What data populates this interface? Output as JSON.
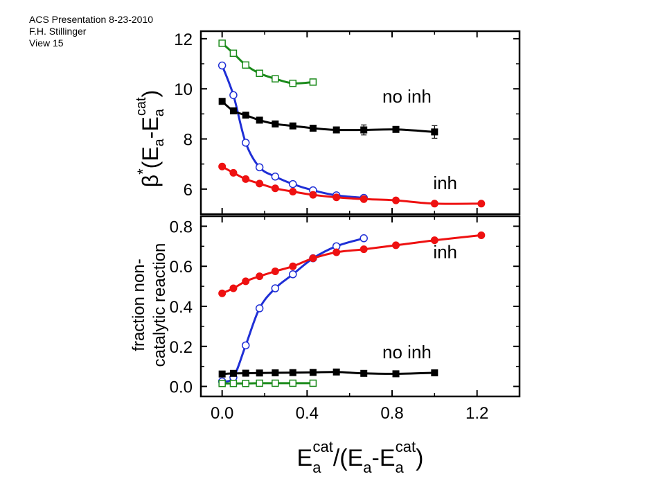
{
  "header": {
    "line1": "ACS Presentation 8-23-2010",
    "line2": "F.H. Stillinger",
    "line3": "View 15"
  },
  "colors": {
    "green": "#1a8a1a",
    "blue": "#1f2fd6",
    "black": "#000000",
    "red": "#ee1111"
  },
  "chart_data": [
    {
      "type": "line",
      "panel": "top",
      "ylabel": {
        "beta": "β",
        "star": "*",
        "open": "(E",
        "sub1": "a",
        "mid": "-E",
        "sub2": "a",
        "sup2": "cat",
        "close": ")"
      },
      "xlim": [
        -0.1,
        1.4
      ],
      "ylim": [
        5.0,
        12.3
      ],
      "yticks": [
        {
          "value": 6,
          "label": "6"
        },
        {
          "value": 8,
          "label": "8"
        },
        {
          "value": 10,
          "label": "10"
        },
        {
          "value": 12,
          "label": "12"
        }
      ],
      "annotations": [
        {
          "text": "no inh",
          "x": 0.87,
          "y": 9.45
        },
        {
          "text": "inh",
          "x": 1.05,
          "y": 6.0
        }
      ],
      "series": [
        {
          "id": "green-sq",
          "color": "#1a8a1a",
          "marker": "open-square",
          "x": [
            0.0,
            0.053,
            0.111,
            0.176,
            0.25,
            0.333,
            0.428
          ],
          "y": [
            11.82,
            11.42,
            10.95,
            10.62,
            10.4,
            10.22,
            10.27
          ]
        },
        {
          "id": "blue-circ",
          "color": "#1f2fd6",
          "marker": "open-circle",
          "x": [
            0.0,
            0.053,
            0.111,
            0.176,
            0.25,
            0.333,
            0.428,
            0.538,
            0.667
          ],
          "y": [
            10.93,
            9.75,
            7.85,
            6.87,
            6.5,
            6.2,
            5.95,
            5.75,
            5.65
          ]
        },
        {
          "id": "black-sq",
          "color": "#000000",
          "marker": "filled-square",
          "x": [
            0.0,
            0.053,
            0.111,
            0.176,
            0.25,
            0.333,
            0.428,
            0.538,
            0.667,
            0.818,
            1.0
          ],
          "y": [
            9.5,
            9.12,
            8.95,
            8.75,
            8.6,
            8.52,
            8.43,
            8.36,
            8.36,
            8.38,
            8.28
          ],
          "yerr": [
            0,
            0,
            0,
            0,
            0,
            0,
            0,
            0,
            0.2,
            0,
            0.25
          ]
        },
        {
          "id": "red-circ",
          "color": "#ee1111",
          "marker": "filled-circle",
          "x": [
            0.0,
            0.053,
            0.111,
            0.176,
            0.25,
            0.333,
            0.428,
            0.538,
            0.667,
            0.818,
            1.0,
            1.22
          ],
          "y": [
            6.9,
            6.65,
            6.4,
            6.22,
            6.03,
            5.9,
            5.77,
            5.67,
            5.6,
            5.55,
            5.42,
            5.42
          ]
        }
      ]
    },
    {
      "type": "line",
      "panel": "bottom",
      "ylabel": {
        "line1": "fraction non-",
        "line2": "catalytic reaction"
      },
      "xlabel": {
        "E1": "E",
        "sub1": "a",
        "sup1": "cat",
        "rest": "/(E",
        "sub2": "a",
        "mid": "-E",
        "sub3": "a",
        "sup3": "cat",
        "close": ")"
      },
      "xlim": [
        -0.1,
        1.4
      ],
      "ylim": [
        -0.05,
        0.85
      ],
      "xticks": [
        {
          "value": 0.0,
          "label": "0.0"
        },
        {
          "value": 0.4,
          "label": "0.4"
        },
        {
          "value": 0.8,
          "label": "0.8"
        },
        {
          "value": 1.2,
          "label": "1.2"
        }
      ],
      "yticks": [
        {
          "value": 0.0,
          "label": "0.0"
        },
        {
          "value": 0.2,
          "label": "0.2"
        },
        {
          "value": 0.4,
          "label": "0.4"
        },
        {
          "value": 0.6,
          "label": "0.6"
        },
        {
          "value": 0.8,
          "label": "0.8"
        }
      ],
      "annotations": [
        {
          "text": "inh",
          "x": 1.05,
          "y": 0.64
        },
        {
          "text": "no inh",
          "x": 0.87,
          "y": 0.14
        }
      ],
      "series": [
        {
          "id": "blue-circ",
          "color": "#1f2fd6",
          "marker": "open-circle",
          "x": [
            0.0,
            0.053,
            0.111,
            0.176,
            0.25,
            0.333,
            0.428,
            0.538,
            0.667
          ],
          "y": [
            0.025,
            0.045,
            0.205,
            0.39,
            0.49,
            0.56,
            0.64,
            0.7,
            0.74
          ]
        },
        {
          "id": "red-circ",
          "color": "#ee1111",
          "marker": "filled-circle",
          "x": [
            0.0,
            0.053,
            0.111,
            0.176,
            0.25,
            0.333,
            0.428,
            0.538,
            0.667,
            0.818,
            1.0,
            1.22
          ],
          "y": [
            0.465,
            0.49,
            0.525,
            0.55,
            0.575,
            0.6,
            0.64,
            0.67,
            0.685,
            0.705,
            0.73,
            0.755
          ]
        },
        {
          "id": "black-sq",
          "color": "#000000",
          "marker": "filled-square",
          "x": [
            0.0,
            0.053,
            0.111,
            0.176,
            0.25,
            0.333,
            0.428,
            0.538,
            0.667,
            0.818,
            1.0
          ],
          "y": [
            0.062,
            0.065,
            0.066,
            0.067,
            0.068,
            0.069,
            0.07,
            0.072,
            0.065,
            0.063,
            0.068
          ]
        },
        {
          "id": "green-sq",
          "color": "#1a8a1a",
          "marker": "open-square",
          "x": [
            0.0,
            0.053,
            0.111,
            0.176,
            0.25,
            0.333,
            0.428
          ],
          "y": [
            0.015,
            0.015,
            0.015,
            0.016,
            0.016,
            0.016,
            0.016
          ]
        }
      ]
    }
  ]
}
